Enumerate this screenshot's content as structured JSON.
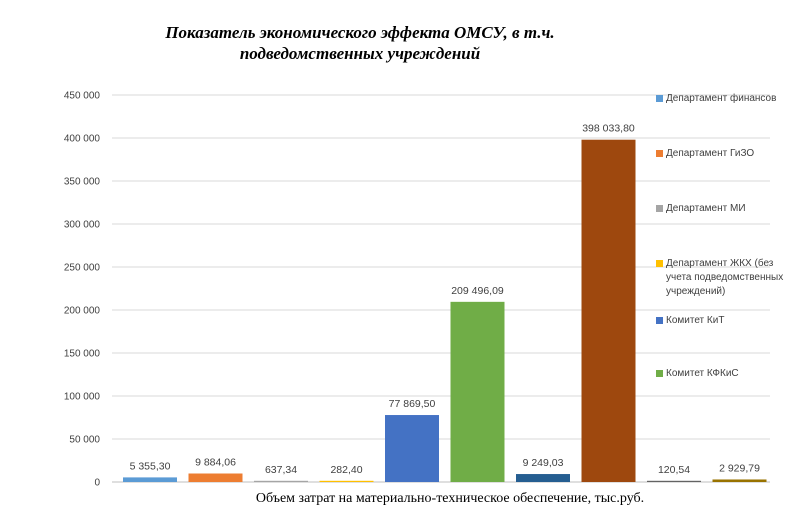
{
  "chart_data": {
    "type": "bar",
    "title": "Показатель экономического эффекта ОМСУ, в т.ч. подведомственных учреждений",
    "xlabel": "Объем затрат на материально-техническое обеспечение, тыс.руб.",
    "ylabel": "",
    "ylim": [
      0,
      450000
    ],
    "yticks": [
      0,
      50000,
      100000,
      150000,
      200000,
      250000,
      300000,
      350000,
      400000,
      450000
    ],
    "ytick_labels": [
      "0",
      "50 000",
      "100 000",
      "150 000",
      "200 000",
      "250 000",
      "300 000",
      "350 000",
      "400 000",
      "450 000"
    ],
    "grid": true,
    "legend_position": "right",
    "series": [
      {
        "name": "Департамент финансов",
        "value": 5355.3,
        "label": "5 355,30",
        "color": "#5B9BD5"
      },
      {
        "name": "Департамент ГиЗО",
        "value": 9884.06,
        "label": "9 884,06",
        "color": "#ED7D31"
      },
      {
        "name": "Департамент МИ",
        "value": 637.34,
        "label": "637,34",
        "color": "#A5A5A5"
      },
      {
        "name": "Департамент ЖКХ (без учета подведомственных учреждений)",
        "value": 282.4,
        "label": "282,40",
        "color": "#FFC000"
      },
      {
        "name": "Комитет КиТ",
        "value": 77869.5,
        "label": "77 869,50",
        "color": "#4472C4"
      },
      {
        "name": "Комитет КФКиС",
        "value": 209496.09,
        "label": "209 496,09",
        "color": "#70AD47"
      },
      {
        "name": "",
        "value": 9249.03,
        "label": "9 249,03",
        "color": "#255E91"
      },
      {
        "name": "",
        "value": 398033.8,
        "label": "398 033,80",
        "color": "#9E480E"
      },
      {
        "name": "",
        "value": 120.54,
        "label": "120,54",
        "color": "#636363"
      },
      {
        "name": "",
        "value": 2929.79,
        "label": "2 929,79",
        "color": "#997300"
      }
    ]
  }
}
